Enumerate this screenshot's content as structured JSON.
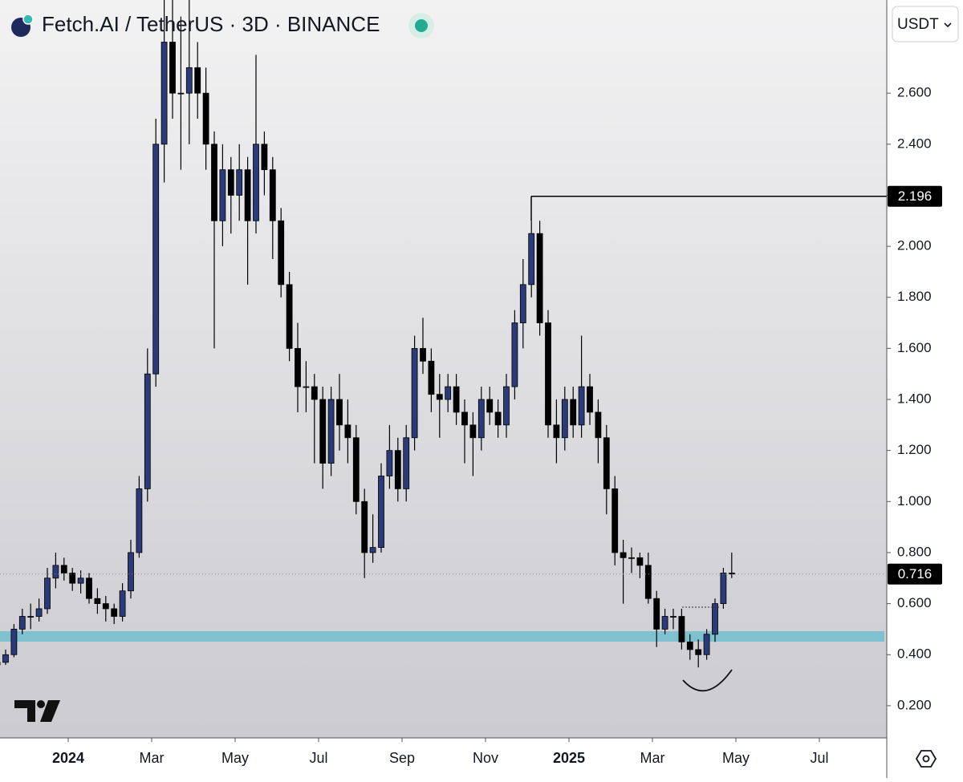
{
  "chart_data": {
    "type": "candlestick",
    "title": "Fetch.AI / TetherUS · 3D · BINANCE",
    "currency": "USDT",
    "up_color": "#2b3a78",
    "down_color": "#000000",
    "zone_color": "#7fc1cf",
    "x": [
      "2023-11",
      "2023-11",
      "2023-11",
      "2023-11",
      "2023-11",
      "2023-12",
      "2023-12",
      "2023-12",
      "2023-12",
      "2023-12",
      "2024-01",
      "2024-01",
      "2024-01",
      "2024-01",
      "2024-01",
      "2024-02",
      "2024-02",
      "2024-02",
      "2024-02",
      "2024-02",
      "2024-03",
      "2024-03",
      "2024-03",
      "2024-03",
      "2024-03",
      "2024-04",
      "2024-04",
      "2024-04",
      "2024-04",
      "2024-04",
      "2024-05",
      "2024-05",
      "2024-05",
      "2024-05",
      "2024-05",
      "2024-06",
      "2024-06",
      "2024-06",
      "2024-06",
      "2024-06",
      "2024-07",
      "2024-07",
      "2024-07",
      "2024-07",
      "2024-07",
      "2024-08",
      "2024-08",
      "2024-08",
      "2024-08",
      "2024-08",
      "2024-09",
      "2024-09",
      "2024-09",
      "2024-09",
      "2024-09",
      "2024-10",
      "2024-10",
      "2024-10",
      "2024-10",
      "2024-10",
      "2024-11",
      "2024-11",
      "2024-11",
      "2024-11",
      "2024-11",
      "2024-12",
      "2024-12",
      "2024-12",
      "2024-12",
      "2024-12",
      "2025-01",
      "2025-01",
      "2025-01",
      "2025-01",
      "2025-01",
      "2025-02",
      "2025-02",
      "2025-02",
      "2025-02",
      "2025-02",
      "2025-03",
      "2025-03",
      "2025-03",
      "2025-03",
      "2025-03",
      "2025-04",
      "2025-04",
      "2025-04",
      "2025-04",
      "2025-04"
    ],
    "open": [
      0.38,
      0.36,
      0.37,
      0.4,
      0.5,
      0.55,
      0.55,
      0.58,
      0.7,
      0.75,
      0.72,
      0.68,
      0.7,
      0.62,
      0.6,
      0.58,
      0.55,
      0.65,
      0.8,
      1.05,
      1.5,
      2.4,
      2.8,
      2.6,
      2.6,
      2.7,
      2.6,
      2.4,
      2.1,
      2.3,
      2.2,
      2.3,
      2.1,
      2.4,
      2.3,
      2.1,
      1.85,
      1.6,
      1.45,
      1.45,
      1.4,
      1.15,
      1.4,
      1.3,
      1.25,
      1.0,
      0.8,
      0.82,
      1.1,
      1.2,
      1.05,
      1.25,
      1.6,
      1.55,
      1.42,
      1.4,
      1.45,
      1.35,
      1.3,
      1.25,
      1.4,
      1.35,
      1.3,
      1.45,
      1.7,
      1.85,
      2.05,
      1.7,
      1.3,
      1.25,
      1.4,
      1.3,
      1.45,
      1.35,
      1.25,
      1.05,
      0.8,
      0.78,
      0.78,
      0.75,
      0.62,
      0.5,
      0.55,
      0.55,
      0.45,
      0.42,
      0.4,
      0.48,
      0.6,
      0.72
    ],
    "high": [
      0.4,
      0.4,
      0.42,
      0.52,
      0.58,
      0.6,
      0.62,
      0.74,
      0.8,
      0.78,
      0.74,
      0.73,
      0.72,
      0.66,
      0.63,
      0.6,
      0.68,
      0.85,
      1.1,
      1.6,
      2.5,
      2.97,
      2.97,
      2.9,
      2.97,
      2.8,
      2.7,
      2.45,
      2.4,
      2.35,
      2.4,
      2.35,
      2.75,
      2.45,
      2.35,
      2.15,
      1.9,
      1.7,
      1.55,
      1.5,
      1.45,
      1.45,
      1.5,
      1.4,
      1.3,
      1.05,
      0.95,
      1.15,
      1.3,
      1.25,
      1.3,
      1.65,
      1.72,
      1.6,
      1.5,
      1.5,
      1.5,
      1.4,
      1.35,
      1.45,
      1.45,
      1.4,
      1.5,
      1.75,
      1.95,
      2.1,
      2.1,
      1.75,
      1.4,
      1.45,
      1.45,
      1.65,
      1.5,
      1.4,
      1.3,
      1.1,
      0.85,
      0.82,
      0.8,
      0.8,
      0.65,
      0.58,
      0.58,
      0.58,
      0.48,
      0.46,
      0.5,
      0.62,
      0.74,
      0.8
    ],
    "low": [
      0.34,
      0.34,
      0.36,
      0.39,
      0.48,
      0.5,
      0.53,
      0.56,
      0.66,
      0.69,
      0.65,
      0.64,
      0.6,
      0.56,
      0.53,
      0.52,
      0.53,
      0.62,
      0.78,
      1.0,
      1.45,
      2.25,
      2.5,
      2.3,
      2.4,
      2.5,
      2.3,
      1.6,
      2.0,
      2.05,
      2.1,
      1.85,
      2.05,
      2.2,
      1.95,
      1.8,
      1.55,
      1.35,
      1.35,
      1.15,
      1.05,
      1.1,
      1.2,
      1.15,
      0.95,
      0.7,
      0.76,
      0.8,
      1.05,
      1.0,
      1.0,
      1.2,
      1.5,
      1.35,
      1.25,
      1.35,
      1.3,
      1.15,
      1.1,
      1.2,
      1.3,
      1.25,
      1.25,
      1.4,
      1.6,
      1.8,
      1.65,
      1.25,
      1.15,
      1.2,
      1.25,
      1.25,
      1.3,
      1.15,
      0.95,
      0.75,
      0.6,
      0.72,
      0.7,
      0.6,
      0.43,
      0.48,
      0.5,
      0.42,
      0.38,
      0.35,
      0.38,
      0.45,
      0.58,
      0.7
    ],
    "close": [
      0.36,
      0.37,
      0.4,
      0.5,
      0.55,
      0.55,
      0.58,
      0.7,
      0.75,
      0.72,
      0.68,
      0.7,
      0.62,
      0.6,
      0.58,
      0.55,
      0.65,
      0.8,
      1.05,
      1.5,
      2.4,
      2.8,
      2.6,
      2.6,
      2.7,
      2.6,
      2.4,
      2.1,
      2.3,
      2.2,
      2.3,
      2.1,
      2.4,
      2.3,
      2.1,
      1.85,
      1.6,
      1.45,
      1.45,
      1.4,
      1.15,
      1.4,
      1.3,
      1.25,
      1.0,
      0.8,
      0.82,
      1.1,
      1.2,
      1.05,
      1.25,
      1.6,
      1.55,
      1.42,
      1.4,
      1.45,
      1.35,
      1.3,
      1.25,
      1.4,
      1.35,
      1.3,
      1.45,
      1.7,
      1.85,
      2.05,
      1.7,
      1.3,
      1.25,
      1.4,
      1.3,
      1.45,
      1.35,
      1.25,
      1.05,
      0.8,
      0.78,
      0.78,
      0.75,
      0.62,
      0.5,
      0.55,
      0.55,
      0.45,
      0.42,
      0.4,
      0.48,
      0.6,
      0.72,
      0.716
    ],
    "xlim": [
      "2023-11",
      "2025-09"
    ],
    "xticks": [
      {
        "value": "2024-01",
        "label": "2024"
      },
      {
        "value": "2024-03",
        "label": "Mar"
      },
      {
        "value": "2024-05",
        "label": "May"
      },
      {
        "value": "2024-07",
        "label": "Jul"
      },
      {
        "value": "2024-09",
        "label": "Sep"
      },
      {
        "value": "2024-11",
        "label": "Nov"
      },
      {
        "value": "2025-01",
        "label": "2025"
      },
      {
        "value": "2025-03",
        "label": "Mar"
      },
      {
        "value": "2025-05",
        "label": "May"
      },
      {
        "value": "2025-07",
        "label": "Jul"
      }
    ],
    "ylim": [
      0.074,
      2.965
    ],
    "yticks": [
      {
        "value": 0.2,
        "label": "0.200"
      },
      {
        "value": 0.4,
        "label": "0.400"
      },
      {
        "value": 0.6,
        "label": "0.600"
      },
      {
        "value": 0.8,
        "label": "0.800"
      },
      {
        "value": 1.0,
        "label": "1.000"
      },
      {
        "value": 1.2,
        "label": "1.200"
      },
      {
        "value": 1.4,
        "label": "1.400"
      },
      {
        "value": 1.6,
        "label": "1.600"
      },
      {
        "value": 1.8,
        "label": "1.800"
      },
      {
        "value": 2.0,
        "label": "2.000"
      },
      {
        "value": 2.2,
        "label": "2.200"
      },
      {
        "value": 2.4,
        "label": "2.400"
      },
      {
        "value": 2.6,
        "label": "2.600"
      }
    ],
    "hidden_ytick_under_label": 2.2,
    "price_lines": [
      {
        "value": 2.196,
        "label": "2.196",
        "style": "solid"
      },
      {
        "value": 0.716,
        "label": "0.716",
        "style": "dotted"
      }
    ],
    "support_zone": [
      0.451,
      0.492
    ]
  }
}
